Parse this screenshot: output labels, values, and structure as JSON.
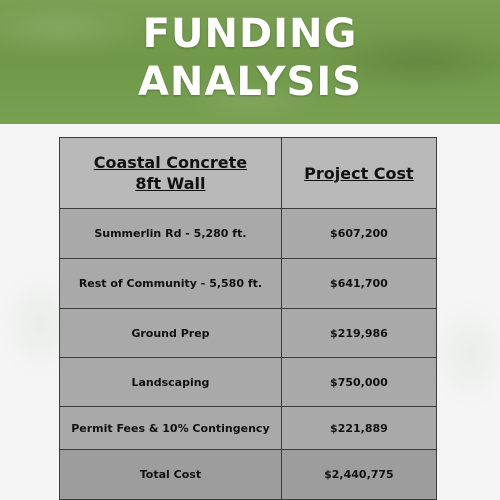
{
  "banner": {
    "title_line1": "FUNDING",
    "title_line2": "ANALYSIS",
    "colors": {
      "banner_green": "#6f9848",
      "title_text": "#ffffff"
    }
  },
  "table": {
    "headers": {
      "item_line1": "Coastal Concrete",
      "item_line2": "8ft Wall",
      "cost": "Project Cost"
    },
    "rows": [
      {
        "item": "Summerlin Rd - 5,280 ft.",
        "cost": "$607,200"
      },
      {
        "item": "Rest of Community - 5,580 ft.",
        "cost": "$641,700"
      },
      {
        "item": "Ground Prep",
        "cost": "$219,986"
      },
      {
        "item": "Landscaping",
        "cost": "$750,000"
      },
      {
        "item": "Permit Fees & 10% Contingency",
        "cost": "$221,889"
      },
      {
        "item": "Total Cost",
        "cost": "$2,440,775"
      }
    ],
    "colors": {
      "cell_gray": "#a9a9a9",
      "border": "#3c3c3c"
    }
  }
}
